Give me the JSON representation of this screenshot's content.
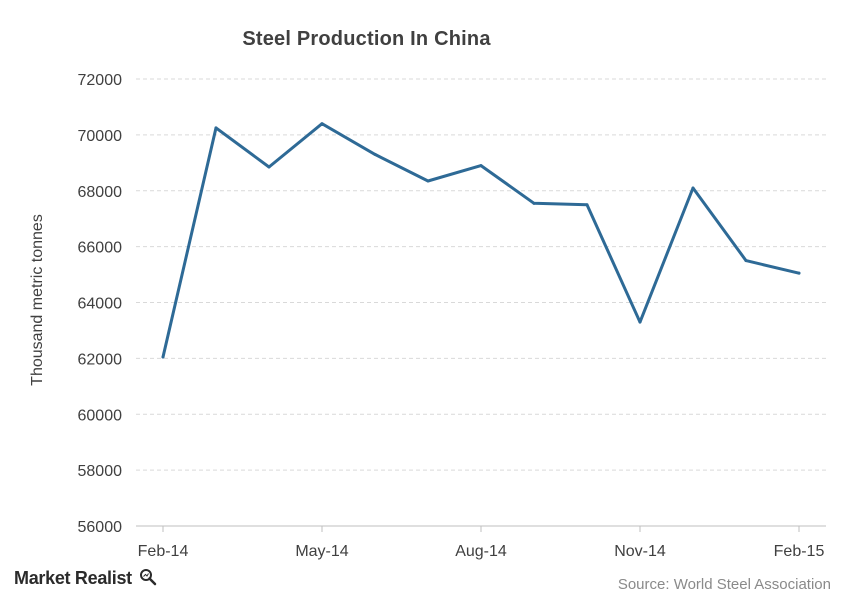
{
  "chart_data": {
    "type": "line",
    "title": "Steel Production In China",
    "xlabel": "",
    "ylabel": "Thousand metric tonnes",
    "x": [
      "Feb-14",
      "Mar-14",
      "Apr-14",
      "May-14",
      "Jun-14",
      "Jul-14",
      "Aug-14",
      "Sep-14",
      "Oct-14",
      "Nov-14",
      "Dec-14",
      "Jan-15",
      "Feb-15"
    ],
    "x_tick_labels": [
      "Feb-14",
      "May-14",
      "Aug-14",
      "Nov-14",
      "Feb-15"
    ],
    "series": [
      {
        "values": [
          62050,
          70250,
          68850,
          70400,
          69300,
          68350,
          68900,
          67550,
          67500,
          63300,
          68100,
          65500,
          65050
        ]
      }
    ],
    "ylim": [
      56000,
      72000
    ],
    "y_ticks": [
      56000,
      58000,
      60000,
      62000,
      64000,
      66000,
      68000,
      70000,
      72000
    ],
    "grid": true,
    "legend": "none"
  },
  "colors": {
    "line": "#2e6a96",
    "grid": "#d9d9d9",
    "axis": "#bfbfbf",
    "text": "#404040"
  },
  "brand": {
    "name": "Market Realist",
    "icon": "magnifier-icon"
  },
  "source": "Source:  World Steel Association"
}
